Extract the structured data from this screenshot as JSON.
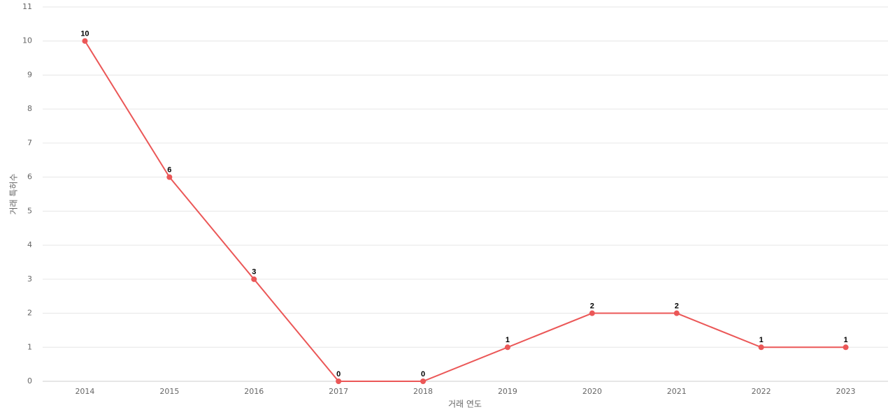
{
  "chart_data": {
    "type": "line",
    "x_label": "거래 연도",
    "y_label": "거래 특허수",
    "categories": [
      "2014",
      "2015",
      "2016",
      "2017",
      "2018",
      "2019",
      "2020",
      "2021",
      "2022",
      "2023"
    ],
    "series": [
      {
        "name": "거래 특허수",
        "color": "#eb5757",
        "values": [
          10,
          6,
          3,
          0,
          0,
          1,
          2,
          2,
          1,
          1
        ]
      }
    ],
    "ylim": [
      0,
      11
    ],
    "yticks": [
      0,
      1,
      2,
      3,
      4,
      5,
      6,
      7,
      8,
      9,
      10,
      11
    ],
    "grid": true
  }
}
